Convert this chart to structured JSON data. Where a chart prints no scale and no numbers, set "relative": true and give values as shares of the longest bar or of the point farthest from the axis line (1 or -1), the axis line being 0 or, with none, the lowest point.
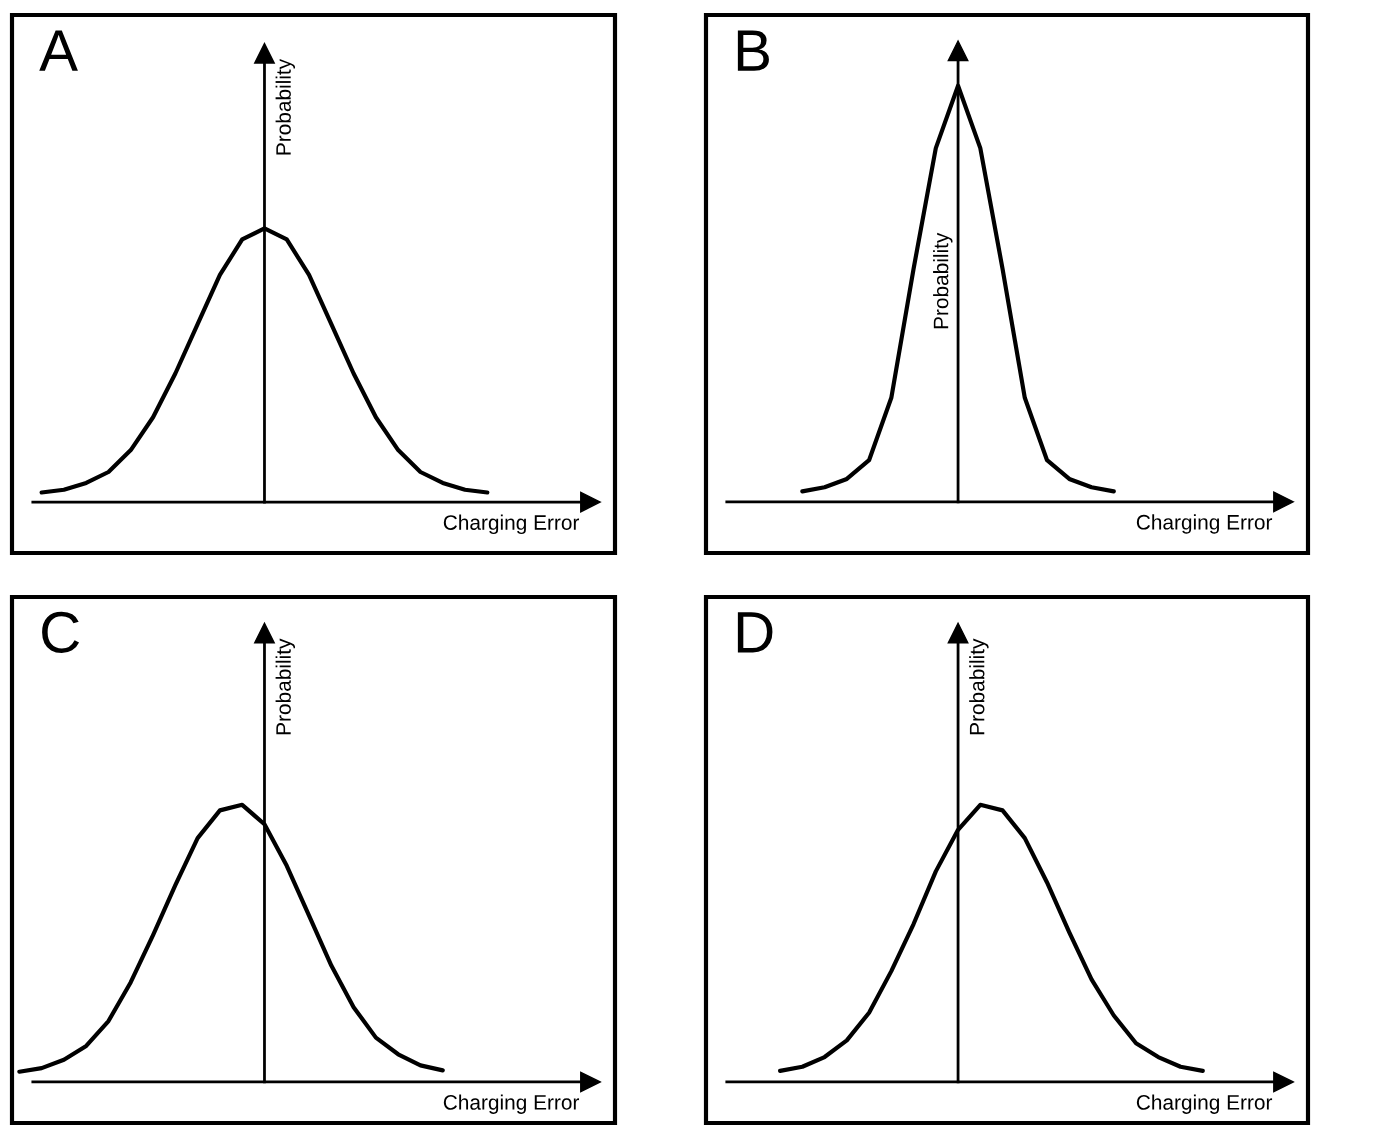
{
  "chart_data": [
    {
      "type": "line",
      "title": "A",
      "xlabel": "Charging Error",
      "ylabel": "Probability",
      "relative": true,
      "categories": [
        null,
        null,
        null,
        null,
        null,
        null,
        null,
        null,
        null,
        null,
        null,
        null,
        null,
        null,
        null,
        null,
        null,
        null,
        null,
        null,
        null,
        null,
        null
      ],
      "series": [
        {
          "color": "#000000",
          "values": [
            null,
            0.035,
            0.045,
            0.07,
            0.11,
            0.19,
            0.31,
            0.47,
            0.65,
            0.83,
            0.96,
            1,
            0.96,
            0.83,
            0.65,
            0.47,
            0.31,
            0.19,
            0.11,
            0.07,
            0.045,
            0.035,
            null
          ]
        }
      ]
    },
    {
      "type": "line",
      "title": "B",
      "xlabel": "Charging Error",
      "ylabel": "Probability",
      "relative": true,
      "categories": [
        null,
        null,
        null,
        null,
        null,
        null,
        null,
        null,
        null,
        null,
        null,
        null,
        null,
        null,
        null,
        null,
        null,
        null,
        null,
        null,
        null,
        null,
        null
      ],
      "series": [
        {
          "color": "#000000",
          "values": [
            null,
            null,
            null,
            null,
            0.025,
            0.035,
            0.055,
            0.1,
            0.25,
            0.56,
            0.85,
            1,
            0.85,
            0.56,
            0.25,
            0.1,
            0.055,
            0.035,
            0.025,
            null,
            null,
            null,
            null
          ]
        }
      ]
    },
    {
      "type": "line",
      "title": "C",
      "xlabel": "Charging Error",
      "ylabel": "Probability",
      "relative": true,
      "categories": [
        null,
        null,
        null,
        null,
        null,
        null,
        null,
        null,
        null,
        null,
        null,
        null,
        null,
        null,
        null,
        null,
        null,
        null,
        null,
        null,
        null,
        null,
        null
      ],
      "series": [
        {
          "color": "#000000",
          "values": [
            0.037,
            0.05,
            0.08,
            0.13,
            0.22,
            0.36,
            0.53,
            0.71,
            0.88,
            0.98,
            1,
            0.93,
            0.78,
            0.6,
            0.42,
            0.27,
            0.16,
            0.1,
            0.06,
            0.042,
            null,
            null,
            null
          ]
        }
      ]
    },
    {
      "type": "line",
      "title": "D",
      "xlabel": "Charging Error",
      "ylabel": "Probability",
      "relative": true,
      "categories": [
        null,
        null,
        null,
        null,
        null,
        null,
        null,
        null,
        null,
        null,
        null,
        null,
        null,
        null,
        null,
        null,
        null,
        null,
        null,
        null,
        null,
        null,
        null
      ],
      "series": [
        {
          "color": "#000000",
          "values": [
            null,
            null,
            null,
            0.04,
            0.055,
            0.09,
            0.15,
            0.25,
            0.4,
            0.57,
            0.76,
            0.91,
            1,
            0.98,
            0.88,
            0.72,
            0.54,
            0.37,
            0.24,
            0.14,
            0.09,
            0.055,
            0.04
          ]
        }
      ]
    }
  ]
}
